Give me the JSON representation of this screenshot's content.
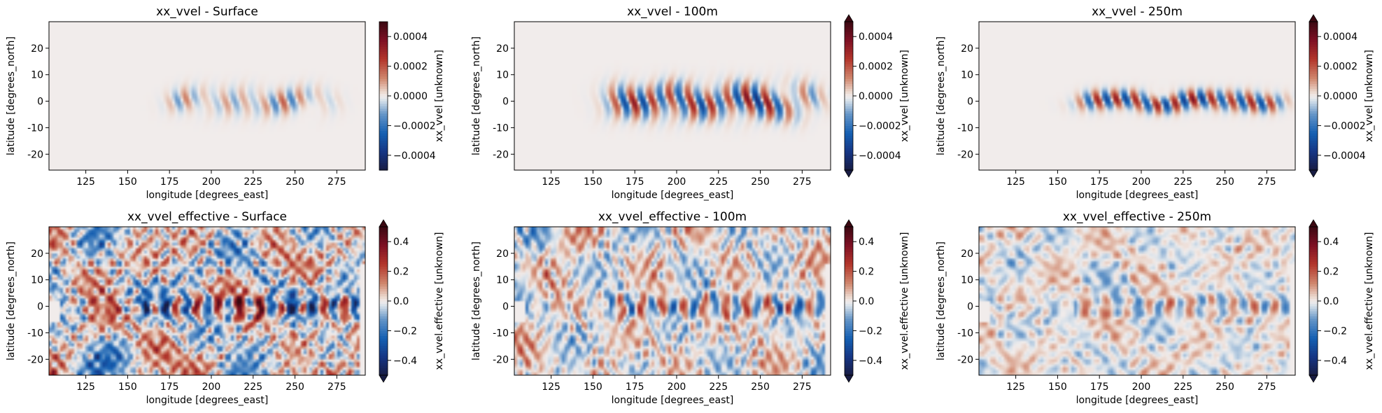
{
  "chart_data": [
    {
      "type": "heatmap",
      "title": "xx_vvel - Surface",
      "xlabel": "longitude [degrees_east]",
      "ylabel": "latitude [degrees_north]",
      "xlim": [
        103,
        292
      ],
      "ylim": [
        -26,
        30
      ],
      "xticks": [
        125,
        150,
        175,
        200,
        225,
        250,
        275
      ],
      "yticks": [
        -20,
        -10,
        0,
        10,
        20
      ],
      "colorbar": {
        "label": "xx_vvel [unknown]",
        "range": [
          -0.0005,
          0.0005
        ],
        "ticks": [
          -0.0004,
          -0.0002,
          0.0,
          0.0002,
          0.0004
        ],
        "tick_labels": [
          "−0.0004",
          "−0.0002",
          "0.0000",
          "0.0002",
          "0.0004"
        ],
        "extend": "neither"
      },
      "colormap": "balance",
      "pattern": {
        "kind": "equatorial",
        "amplitude": 0.35,
        "lon_range": [
          178,
          270
        ],
        "lat_width": 5
      }
    },
    {
      "type": "heatmap",
      "title": "xx_vvel - 100m",
      "xlabel": "longitude [degrees_east]",
      "ylabel": "latitude [degrees_north]",
      "xlim": [
        103,
        292
      ],
      "ylim": [
        -26,
        30
      ],
      "xticks": [
        125,
        150,
        175,
        200,
        225,
        250,
        275
      ],
      "yticks": [
        -20,
        -10,
        0,
        10,
        20
      ],
      "colorbar": {
        "label": "xx_vvel [unknown]",
        "range": [
          -0.0005,
          0.0005
        ],
        "ticks": [
          -0.0004,
          -0.0002,
          0.0,
          0.0002,
          0.0004
        ],
        "tick_labels": [
          "−0.0004",
          "−0.0002",
          "0.0000",
          "0.0002",
          "0.0004"
        ],
        "extend": "both"
      },
      "colormap": "balance",
      "pattern": {
        "kind": "equatorial",
        "amplitude": 0.9,
        "lon_range": [
          160,
          280
        ],
        "lat_width": 6
      }
    },
    {
      "type": "heatmap",
      "title": "xx_vvel - 250m",
      "xlabel": "longitude [degrees_east]",
      "ylabel": "latitude [degrees_north]",
      "xlim": [
        103,
        292
      ],
      "ylim": [
        -26,
        30
      ],
      "xticks": [
        125,
        150,
        175,
        200,
        225,
        250,
        275
      ],
      "yticks": [
        -20,
        -10,
        0,
        10,
        20
      ],
      "colorbar": {
        "label": "xx_vvel [unknown]",
        "range": [
          -0.0005,
          0.0005
        ],
        "ticks": [
          -0.0004,
          -0.0002,
          0.0,
          0.0002,
          0.0004
        ],
        "tick_labels": [
          "−0.0004",
          "−0.0002",
          "0.0000",
          "0.0002",
          "0.0004"
        ],
        "extend": "both"
      },
      "colormap": "balance",
      "pattern": {
        "kind": "equatorial",
        "amplitude": 1.0,
        "lon_range": [
          165,
          282
        ],
        "lat_width": 3.5
      }
    },
    {
      "type": "heatmap",
      "title": "xx_vvel_effective - Surface",
      "xlabel": "longitude [degrees_east]",
      "ylabel": "latitude [degrees_north]",
      "xlim": [
        103,
        292
      ],
      "ylim": [
        -26,
        30
      ],
      "xticks": [
        125,
        150,
        175,
        200,
        225,
        250,
        275
      ],
      "yticks": [
        -20,
        -10,
        0,
        10,
        20
      ],
      "colorbar": {
        "label": "xx_vvel.effective [unknown]",
        "range": [
          -0.5,
          0.5
        ],
        "ticks": [
          -0.4,
          -0.2,
          0.0,
          0.2,
          0.4
        ],
        "tick_labels": [
          "−0.4",
          "−0.2",
          "0.0",
          "0.2",
          "0.4"
        ],
        "extend": "both"
      },
      "colormap": "balance",
      "pattern": {
        "kind": "basin",
        "amplitude": 0.75
      }
    },
    {
      "type": "heatmap",
      "title": "xx_vvel_effective - 100m",
      "xlabel": "longitude [degrees_east]",
      "ylabel": "latitude [degrees_north]",
      "xlim": [
        103,
        292
      ],
      "ylim": [
        -26,
        30
      ],
      "xticks": [
        125,
        150,
        175,
        200,
        225,
        250,
        275
      ],
      "yticks": [
        -20,
        -10,
        0,
        10,
        20
      ],
      "colorbar": {
        "label": "xx_vvel.effective [unknown]",
        "range": [
          -0.5,
          0.5
        ],
        "ticks": [
          -0.4,
          -0.2,
          0.0,
          0.2,
          0.4
        ],
        "tick_labels": [
          "−0.4",
          "−0.2",
          "0.0",
          "0.2",
          "0.4"
        ],
        "extend": "both"
      },
      "colormap": "balance",
      "pattern": {
        "kind": "basin",
        "amplitude": 0.5
      }
    },
    {
      "type": "heatmap",
      "title": "xx_vvel_effective - 250m",
      "xlabel": "longitude [degrees_east]",
      "ylabel": "latitude [degrees_north]",
      "xlim": [
        103,
        292
      ],
      "ylim": [
        -26,
        30
      ],
      "xticks": [
        125,
        150,
        175,
        200,
        225,
        250,
        275
      ],
      "yticks": [
        -20,
        -10,
        0,
        10,
        20
      ],
      "colorbar": {
        "label": "xx_vvel.effective [unknown]",
        "range": [
          -0.5,
          0.5
        ],
        "ticks": [
          -0.4,
          -0.2,
          0.0,
          0.2,
          0.4
        ],
        "tick_labels": [
          "−0.4",
          "−0.2",
          "0.0",
          "0.2",
          "0.4"
        ],
        "extend": "both"
      },
      "colormap": "balance",
      "pattern": {
        "kind": "basin",
        "amplitude": 0.3
      }
    }
  ]
}
